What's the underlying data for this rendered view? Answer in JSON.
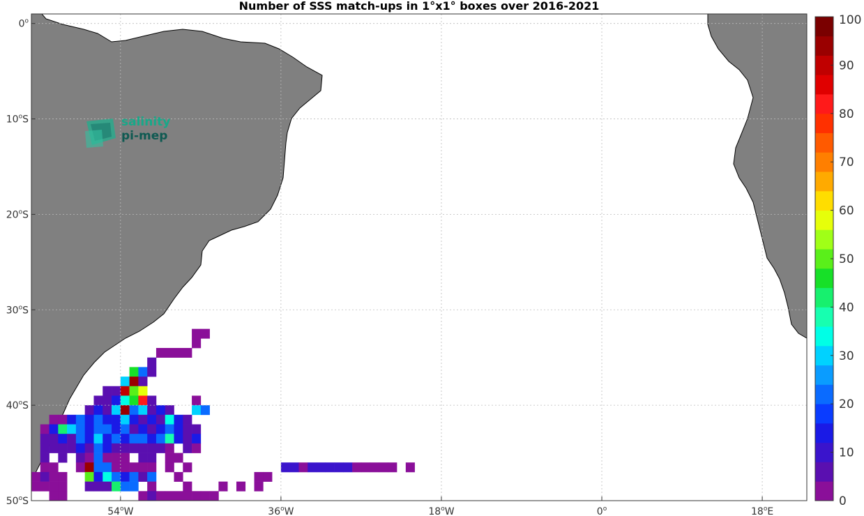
{
  "title": "Number of SSS match-ups in 1°x1° boxes over 2016-2021",
  "logo": {
    "line1": "salinity",
    "line2": "pi-mep"
  },
  "map": {
    "lon_range": [
      -64,
      23
    ],
    "lat_range": [
      -50,
      1
    ],
    "x_ticks": [
      {
        "lon": -54,
        "text": "54",
        "suffix": "W"
      },
      {
        "lon": -36,
        "text": "36",
        "suffix": "W"
      },
      {
        "lon": -18,
        "text": "18",
        "suffix": "W"
      },
      {
        "lon": 0,
        "text": "0",
        "suffix": ""
      },
      {
        "lon": 18,
        "text": "18",
        "suffix": "E"
      }
    ],
    "y_ticks": [
      {
        "lat": 0,
        "text": "0",
        "suffix": ""
      },
      {
        "lat": -10,
        "text": "10",
        "suffix": "S"
      },
      {
        "lat": -20,
        "text": "20",
        "suffix": "S"
      },
      {
        "lat": -30,
        "text": "30",
        "suffix": "S"
      },
      {
        "lat": -40,
        "text": "40",
        "suffix": "S"
      },
      {
        "lat": -50,
        "text": "50",
        "suffix": "S"
      }
    ],
    "land_color": "#808080",
    "grid": true
  },
  "colorbar": {
    "range": [
      0,
      100
    ],
    "tick_labels": [
      "0",
      "10",
      "20",
      "30",
      "40",
      "50",
      "60",
      "70",
      "80",
      "90",
      "100"
    ],
    "colors": [
      "#8a0f99",
      "#5a0fb0",
      "#3a14cc",
      "#1a1ae6",
      "#0a3cff",
      "#0a6bff",
      "#0a9cff",
      "#00d2ff",
      "#00ffe6",
      "#17ffb0",
      "#17f06e",
      "#17e028",
      "#5aef1a",
      "#a0ff17",
      "#e6ff0a",
      "#ffdd00",
      "#ffaa00",
      "#ff7f00",
      "#ff5a00",
      "#ff3000",
      "#ff1a1a",
      "#e00000",
      "#c00000",
      "#9a0000",
      "#7a0000"
    ]
  },
  "chart_data": {
    "type": "heatmap",
    "title": "Number of SSS match-ups in 1°x1° boxes over 2016-2021",
    "xlabel": "",
    "ylabel": "",
    "value_range": [
      0,
      100
    ],
    "cell_size_deg": 1,
    "cells": [
      {
        "lon": -46,
        "lat": -32,
        "v": 3
      },
      {
        "lon": -45,
        "lat": -32,
        "v": 3
      },
      {
        "lon": -46,
        "lat": -33,
        "v": 3
      },
      {
        "lon": -50,
        "lat": -34,
        "v": 3
      },
      {
        "lon": -49,
        "lat": -34,
        "v": 3
      },
      {
        "lon": -48,
        "lat": -34,
        "v": 3
      },
      {
        "lon": -47,
        "lat": -34,
        "v": 3
      },
      {
        "lon": -51,
        "lat": -35,
        "v": 6
      },
      {
        "lon": -53,
        "lat": -36,
        "v": 45
      },
      {
        "lon": -52,
        "lat": -36,
        "v": 20
      },
      {
        "lon": -51,
        "lat": -36,
        "v": 6
      },
      {
        "lon": -54,
        "lat": -37,
        "v": 30
      },
      {
        "lon": -53,
        "lat": -37,
        "v": 95
      },
      {
        "lon": -52,
        "lat": -37,
        "v": 6
      },
      {
        "lon": -56,
        "lat": -38,
        "v": 6
      },
      {
        "lon": -55,
        "lat": -38,
        "v": 6
      },
      {
        "lon": -54,
        "lat": -38,
        "v": 90
      },
      {
        "lon": -53,
        "lat": -38,
        "v": 50
      },
      {
        "lon": -52,
        "lat": -38,
        "v": 58
      },
      {
        "lon": -57,
        "lat": -39,
        "v": 6
      },
      {
        "lon": -56,
        "lat": -39,
        "v": 6
      },
      {
        "lon": -55,
        "lat": -39,
        "v": 12
      },
      {
        "lon": -54,
        "lat": -39,
        "v": 35
      },
      {
        "lon": -53,
        "lat": -39,
        "v": 45
      },
      {
        "lon": -52,
        "lat": -39,
        "v": 80
      },
      {
        "lon": -51,
        "lat": -39,
        "v": 6
      },
      {
        "lon": -46,
        "lat": -39,
        "v": 3
      },
      {
        "lon": -58,
        "lat": -40,
        "v": 6
      },
      {
        "lon": -57,
        "lat": -40,
        "v": 12
      },
      {
        "lon": -56,
        "lat": -40,
        "v": 6
      },
      {
        "lon": -55,
        "lat": -40,
        "v": 30
      },
      {
        "lon": -54,
        "lat": -40,
        "v": 95
      },
      {
        "lon": -53,
        "lat": -40,
        "v": 20
      },
      {
        "lon": -52,
        "lat": -40,
        "v": 30
      },
      {
        "lon": -51,
        "lat": -40,
        "v": 6
      },
      {
        "lon": -50,
        "lat": -40,
        "v": 12
      },
      {
        "lon": -49,
        "lat": -40,
        "v": 6
      },
      {
        "lon": -46,
        "lat": -40,
        "v": 30
      },
      {
        "lon": -45,
        "lat": -40,
        "v": 20
      },
      {
        "lon": -62,
        "lat": -41,
        "v": 3
      },
      {
        "lon": -61,
        "lat": -41,
        "v": 3
      },
      {
        "lon": -60,
        "lat": -41,
        "v": 12
      },
      {
        "lon": -59,
        "lat": -41,
        "v": 20
      },
      {
        "lon": -58,
        "lat": -41,
        "v": 12
      },
      {
        "lon": -57,
        "lat": -41,
        "v": 20
      },
      {
        "lon": -56,
        "lat": -41,
        "v": 12
      },
      {
        "lon": -55,
        "lat": -41,
        "v": 12
      },
      {
        "lon": -54,
        "lat": -41,
        "v": 30
      },
      {
        "lon": -53,
        "lat": -41,
        "v": 12
      },
      {
        "lon": -52,
        "lat": -41,
        "v": 6
      },
      {
        "lon": -51,
        "lat": -41,
        "v": 12
      },
      {
        "lon": -50,
        "lat": -41,
        "v": 6
      },
      {
        "lon": -49,
        "lat": -41,
        "v": 35
      },
      {
        "lon": -48,
        "lat": -41,
        "v": 12
      },
      {
        "lon": -47,
        "lat": -41,
        "v": 6
      },
      {
        "lon": -63,
        "lat": -42,
        "v": 3
      },
      {
        "lon": -62,
        "lat": -42,
        "v": 12
      },
      {
        "lon": -61,
        "lat": -42,
        "v": 42
      },
      {
        "lon": -60,
        "lat": -42,
        "v": 30
      },
      {
        "lon": -59,
        "lat": -42,
        "v": 20
      },
      {
        "lon": -58,
        "lat": -42,
        "v": 12
      },
      {
        "lon": -57,
        "lat": -42,
        "v": 20
      },
      {
        "lon": -56,
        "lat": -42,
        "v": 20
      },
      {
        "lon": -55,
        "lat": -42,
        "v": 12
      },
      {
        "lon": -54,
        "lat": -42,
        "v": 20
      },
      {
        "lon": -53,
        "lat": -42,
        "v": 6
      },
      {
        "lon": -52,
        "lat": -42,
        "v": 12
      },
      {
        "lon": -51,
        "lat": -42,
        "v": 6
      },
      {
        "lon": -50,
        "lat": -42,
        "v": 12
      },
      {
        "lon": -49,
        "lat": -42,
        "v": 20
      },
      {
        "lon": -48,
        "lat": -42,
        "v": 12
      },
      {
        "lon": -47,
        "lat": -42,
        "v": 6
      },
      {
        "lon": -46,
        "lat": -42,
        "v": 6
      },
      {
        "lon": -63,
        "lat": -43,
        "v": 6
      },
      {
        "lon": -62,
        "lat": -43,
        "v": 6
      },
      {
        "lon": -61,
        "lat": -43,
        "v": 12
      },
      {
        "lon": -60,
        "lat": -43,
        "v": 6
      },
      {
        "lon": -59,
        "lat": -43,
        "v": 20
      },
      {
        "lon": -58,
        "lat": -43,
        "v": 12
      },
      {
        "lon": -57,
        "lat": -43,
        "v": 30
      },
      {
        "lon": -56,
        "lat": -43,
        "v": 12
      },
      {
        "lon": -55,
        "lat": -43,
        "v": 20
      },
      {
        "lon": -54,
        "lat": -43,
        "v": 12
      },
      {
        "lon": -53,
        "lat": -43,
        "v": 20
      },
      {
        "lon": -52,
        "lat": -43,
        "v": 20
      },
      {
        "lon": -51,
        "lat": -43,
        "v": 12
      },
      {
        "lon": -50,
        "lat": -43,
        "v": 20
      },
      {
        "lon": -49,
        "lat": -43,
        "v": 38
      },
      {
        "lon": -48,
        "lat": -43,
        "v": 12
      },
      {
        "lon": -47,
        "lat": -43,
        "v": 6
      },
      {
        "lon": -46,
        "lat": -43,
        "v": 12
      },
      {
        "lon": -63,
        "lat": -44,
        "v": 6
      },
      {
        "lon": -62,
        "lat": -44,
        "v": 6
      },
      {
        "lon": -61,
        "lat": -44,
        "v": 6
      },
      {
        "lon": -60,
        "lat": -44,
        "v": 6
      },
      {
        "lon": -59,
        "lat": -44,
        "v": 12
      },
      {
        "lon": -58,
        "lat": -44,
        "v": 6
      },
      {
        "lon": -57,
        "lat": -44,
        "v": 20
      },
      {
        "lon": -56,
        "lat": -44,
        "v": 12
      },
      {
        "lon": -55,
        "lat": -44,
        "v": 6
      },
      {
        "lon": -54,
        "lat": -44,
        "v": 6
      },
      {
        "lon": -53,
        "lat": -44,
        "v": 6
      },
      {
        "lon": -52,
        "lat": -44,
        "v": 6
      },
      {
        "lon": -51,
        "lat": -44,
        "v": 6
      },
      {
        "lon": -50,
        "lat": -44,
        "v": 6
      },
      {
        "lon": -49,
        "lat": -44,
        "v": 3
      },
      {
        "lon": -47,
        "lat": -44,
        "v": 6
      },
      {
        "lon": -46,
        "lat": -44,
        "v": 3
      },
      {
        "lon": -63,
        "lat": -45,
        "v": 6
      },
      {
        "lon": -61,
        "lat": -45,
        "v": 6
      },
      {
        "lon": -59,
        "lat": -45,
        "v": 6
      },
      {
        "lon": -58,
        "lat": -45,
        "v": 3
      },
      {
        "lon": -57,
        "lat": -45,
        "v": 20
      },
      {
        "lon": -56,
        "lat": -45,
        "v": 3
      },
      {
        "lon": -55,
        "lat": -45,
        "v": 3
      },
      {
        "lon": -54,
        "lat": -45,
        "v": 3
      },
      {
        "lon": -52,
        "lat": -45,
        "v": 6
      },
      {
        "lon": -51,
        "lat": -45,
        "v": 6
      },
      {
        "lon": -49,
        "lat": -45,
        "v": 3
      },
      {
        "lon": -48,
        "lat": -45,
        "v": 3
      },
      {
        "lon": -63,
        "lat": -46,
        "v": 3
      },
      {
        "lon": -62,
        "lat": -46,
        "v": 3
      },
      {
        "lon": -59,
        "lat": -46,
        "v": 3
      },
      {
        "lon": -58,
        "lat": -46,
        "v": 95
      },
      {
        "lon": -57,
        "lat": -46,
        "v": 20
      },
      {
        "lon": -56,
        "lat": -46,
        "v": 20
      },
      {
        "lon": -55,
        "lat": -46,
        "v": 3
      },
      {
        "lon": -54,
        "lat": -46,
        "v": 3
      },
      {
        "lon": -53,
        "lat": -46,
        "v": 3
      },
      {
        "lon": -52,
        "lat": -46,
        "v": 3
      },
      {
        "lon": -51,
        "lat": -46,
        "v": 3
      },
      {
        "lon": -49,
        "lat": -46,
        "v": 3
      },
      {
        "lon": -47,
        "lat": -46,
        "v": 3
      },
      {
        "lon": -36,
        "lat": -46,
        "v": 10
      },
      {
        "lon": -35,
        "lat": -46,
        "v": 10
      },
      {
        "lon": -34,
        "lat": -46,
        "v": 3
      },
      {
        "lon": -33,
        "lat": -46,
        "v": 10
      },
      {
        "lon": -32,
        "lat": -46,
        "v": 10
      },
      {
        "lon": -31,
        "lat": -46,
        "v": 10
      },
      {
        "lon": -30,
        "lat": -46,
        "v": 10
      },
      {
        "lon": -29,
        "lat": -46,
        "v": 10
      },
      {
        "lon": -28,
        "lat": -46,
        "v": 3
      },
      {
        "lon": -27,
        "lat": -46,
        "v": 3
      },
      {
        "lon": -26,
        "lat": -46,
        "v": 3
      },
      {
        "lon": -25,
        "lat": -46,
        "v": 3
      },
      {
        "lon": -24,
        "lat": -46,
        "v": 3
      },
      {
        "lon": -22,
        "lat": -46,
        "v": 3
      },
      {
        "lon": -64,
        "lat": -47,
        "v": 3
      },
      {
        "lon": -63,
        "lat": -47,
        "v": 6
      },
      {
        "lon": -62,
        "lat": -47,
        "v": 3
      },
      {
        "lon": -61,
        "lat": -47,
        "v": 3
      },
      {
        "lon": -58,
        "lat": -47,
        "v": 50
      },
      {
        "lon": -57,
        "lat": -47,
        "v": 12
      },
      {
        "lon": -56,
        "lat": -47,
        "v": 35
      },
      {
        "lon": -55,
        "lat": -47,
        "v": 20
      },
      {
        "lon": -54,
        "lat": -47,
        "v": 12
      },
      {
        "lon": -53,
        "lat": -47,
        "v": 20
      },
      {
        "lon": -52,
        "lat": -47,
        "v": 6
      },
      {
        "lon": -51,
        "lat": -47,
        "v": 20
      },
      {
        "lon": -48,
        "lat": -47,
        "v": 3
      },
      {
        "lon": -39,
        "lat": -47,
        "v": 3
      },
      {
        "lon": -38,
        "lat": -47,
        "v": 3
      },
      {
        "lon": -64,
        "lat": -48,
        "v": 3
      },
      {
        "lon": -63,
        "lat": -48,
        "v": 3
      },
      {
        "lon": -62,
        "lat": -48,
        "v": 3
      },
      {
        "lon": -61,
        "lat": -48,
        "v": 3
      },
      {
        "lon": -58,
        "lat": -48,
        "v": 6
      },
      {
        "lon": -57,
        "lat": -48,
        "v": 6
      },
      {
        "lon": -56,
        "lat": -48,
        "v": 6
      },
      {
        "lon": -55,
        "lat": -48,
        "v": 42
      },
      {
        "lon": -54,
        "lat": -48,
        "v": 20
      },
      {
        "lon": -53,
        "lat": -48,
        "v": 20
      },
      {
        "lon": -51,
        "lat": -48,
        "v": 3
      },
      {
        "lon": -47,
        "lat": -48,
        "v": 3
      },
      {
        "lon": -43,
        "lat": -48,
        "v": 3
      },
      {
        "lon": -41,
        "lat": -48,
        "v": 3
      },
      {
        "lon": -39,
        "lat": -48,
        "v": 3
      },
      {
        "lon": -62,
        "lat": -49,
        "v": 3
      },
      {
        "lon": -61,
        "lat": -49,
        "v": 3
      },
      {
        "lon": -52,
        "lat": -49,
        "v": 3
      },
      {
        "lon": -51,
        "lat": -49,
        "v": 6
      },
      {
        "lon": -50,
        "lat": -49,
        "v": 3
      },
      {
        "lon": -49,
        "lat": -49,
        "v": 3
      },
      {
        "lon": -48,
        "lat": -49,
        "v": 3
      },
      {
        "lon": -47,
        "lat": -49,
        "v": 3
      },
      {
        "lon": -46,
        "lat": -49,
        "v": 3
      },
      {
        "lon": -45,
        "lat": -49,
        "v": 3
      },
      {
        "lon": -44,
        "lat": -49,
        "v": 3
      }
    ]
  }
}
